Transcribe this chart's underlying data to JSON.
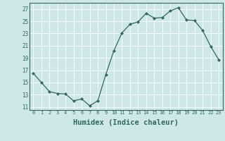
{
  "x": [
    0,
    1,
    2,
    3,
    4,
    5,
    6,
    7,
    8,
    9,
    10,
    11,
    12,
    13,
    14,
    15,
    16,
    17,
    18,
    19,
    20,
    21,
    22,
    23
  ],
  "y": [
    16.5,
    15.0,
    13.5,
    13.2,
    13.1,
    12.0,
    12.3,
    11.2,
    12.0,
    16.3,
    20.2,
    23.1,
    24.5,
    24.9,
    26.3,
    25.5,
    25.6,
    26.7,
    27.2,
    25.2,
    25.1,
    23.5,
    20.9,
    18.7
  ],
  "line_color": "#2e6b5e",
  "marker": "D",
  "marker_size": 2,
  "bg_color": "#cde8e5",
  "grid_color": "#ffffff",
  "tick_color": "#2e6b5e",
  "xlabel": "Humidex (Indice chaleur)",
  "xlabel_fontsize": 7.5,
  "ylabel_ticks": [
    11,
    13,
    15,
    17,
    19,
    21,
    23,
    25,
    27
  ],
  "ylim": [
    10.5,
    28.0
  ],
  "xlim": [
    -0.5,
    23.5
  ],
  "xticks": [
    0,
    1,
    2,
    3,
    4,
    5,
    6,
    7,
    8,
    9,
    10,
    11,
    12,
    13,
    14,
    15,
    16,
    17,
    18,
    19,
    20,
    21,
    22,
    23
  ]
}
